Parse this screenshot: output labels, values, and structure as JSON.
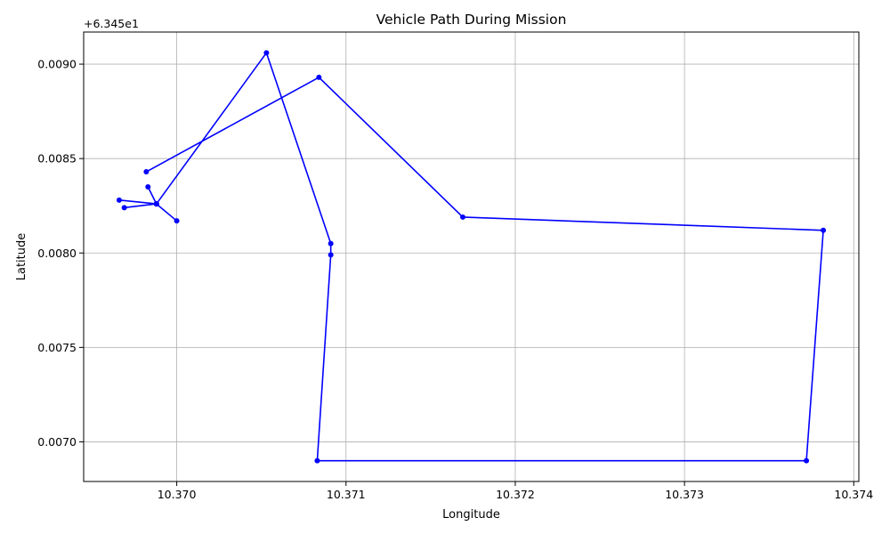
{
  "chart_data": {
    "type": "line",
    "title": "Vehicle Path During Mission",
    "xlabel": "Longitude",
    "ylabel": "Latitude",
    "y_offset_label": "+6.345e1",
    "xlim": [
      10.36945,
      10.37403
    ],
    "ylim": [
      0.00679,
      0.00917
    ],
    "x_ticks": [
      10.37,
      10.371,
      10.372,
      10.373,
      10.374
    ],
    "x_tick_labels": [
      "10.370",
      "10.371",
      "10.372",
      "10.373",
      "10.374"
    ],
    "y_ticks": [
      0.007,
      0.0075,
      0.008,
      0.0085,
      0.009
    ],
    "y_tick_labels": [
      "0.0070",
      "0.0075",
      "0.0080",
      "0.0085",
      "0.0090"
    ],
    "grid": true,
    "line_color": "#0000ff",
    "series": [
      {
        "points": [
          [
            10.36983,
            0.00835
          ],
          [
            10.36988,
            0.00826
          ],
          [
            10.36966,
            0.00828
          ],
          [
            10.36988,
            0.00826
          ],
          [
            10.36969,
            0.00824
          ],
          [
            10.36988,
            0.00826
          ],
          [
            10.37,
            0.00817
          ],
          [
            10.36988,
            0.00826
          ],
          [
            10.37053,
            0.00906
          ],
          [
            10.37091,
            0.00805
          ],
          [
            10.37091,
            0.00799
          ],
          [
            10.37083,
            0.0069
          ],
          [
            10.37372,
            0.0069
          ],
          [
            10.37382,
            0.00812
          ],
          [
            10.37169,
            0.00819
          ],
          [
            10.37084,
            0.00893
          ],
          [
            10.36982,
            0.00843
          ]
        ]
      }
    ]
  }
}
